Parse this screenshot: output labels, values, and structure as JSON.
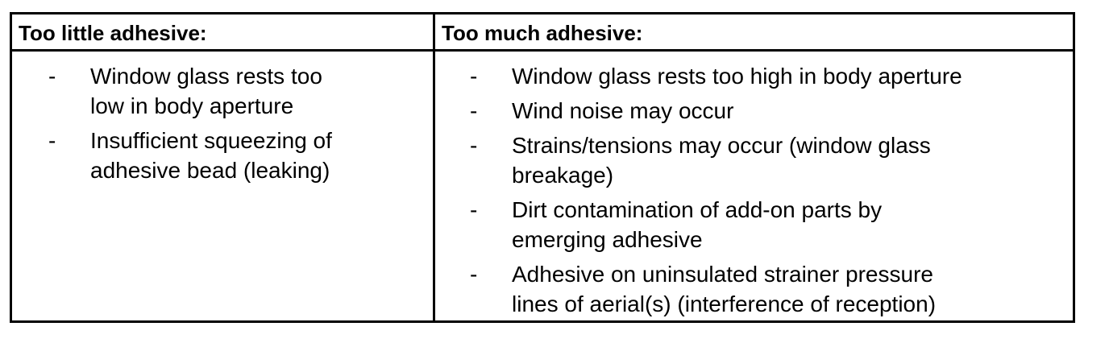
{
  "columns": [
    {
      "header": "Too little adhesive:",
      "items": [
        [
          "Window glass rests too",
          "low in body aperture"
        ],
        [
          "Insufficient squeezing of",
          "adhesive bead (leaking)"
        ]
      ]
    },
    {
      "header": "Too much adhesive:",
      "items": [
        [
          "Window glass rests too high in body aperture"
        ],
        [
          "Wind noise may occur"
        ],
        [
          "Strains/tensions may occur (window glass",
          "breakage)"
        ],
        [
          "Dirt contamination of add-on parts by",
          "emerging adhesive"
        ],
        [
          "Adhesive on uninsulated strainer pressure",
          "lines of aerial(s) (interference of reception)"
        ]
      ]
    }
  ],
  "bullet": "-"
}
